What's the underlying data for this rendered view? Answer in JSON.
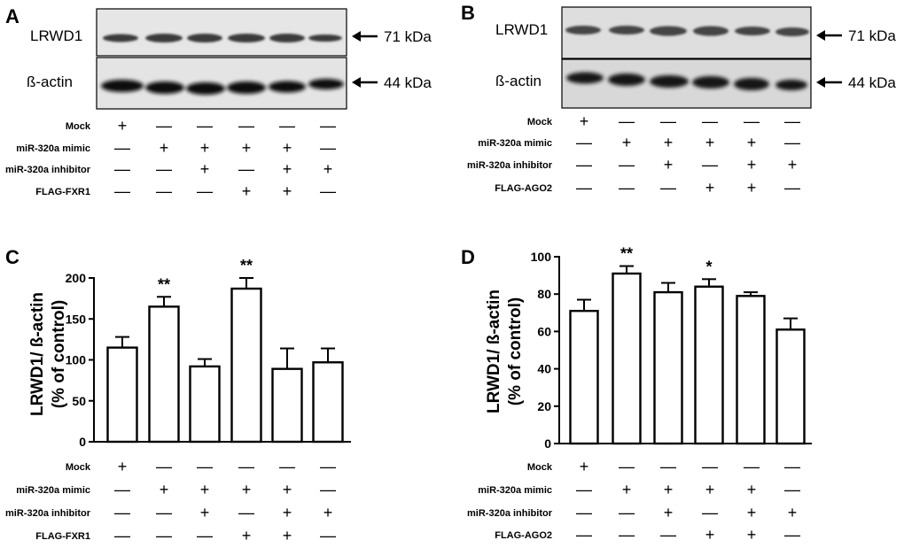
{
  "panels": {
    "a": {
      "label": "A",
      "blots": [
        {
          "name": "LRWD1",
          "size": "71 kDa"
        },
        {
          "name": "ß-actin",
          "size": "44 kDa"
        }
      ],
      "conditions": [
        {
          "label": "Mock",
          "signs": [
            "+",
            "—",
            "—",
            "—",
            "—",
            "—"
          ]
        },
        {
          "label": "miR-320a mimic",
          "signs": [
            "—",
            "+",
            "+",
            "+",
            "+",
            "—"
          ]
        },
        {
          "label": "miR-320a inhibitor",
          "signs": [
            "—",
            "—",
            "+",
            "—",
            "+",
            "+"
          ]
        },
        {
          "label": "FLAG-FXR1",
          "signs": [
            "—",
            "—",
            "—",
            "+",
            "+",
            "—"
          ]
        }
      ]
    },
    "b": {
      "label": "B",
      "blots": [
        {
          "name": "LRWD1",
          "size": "71 kDa"
        },
        {
          "name": "ß-actin",
          "size": "44 kDa"
        }
      ],
      "conditions": [
        {
          "label": "Mock",
          "signs": [
            "+",
            "—",
            "—",
            "—",
            "—",
            "—"
          ]
        },
        {
          "label": "miR-320a mimic",
          "signs": [
            "—",
            "+",
            "+",
            "+",
            "+",
            "—"
          ]
        },
        {
          "label": "miR-320a inhibitor",
          "signs": [
            "—",
            "—",
            "+",
            "—",
            "+",
            "+"
          ]
        },
        {
          "label": "FLAG-AGO2",
          "signs": [
            "—",
            "—",
            "—",
            "+",
            "+",
            "—"
          ]
        }
      ]
    },
    "c": {
      "label": "C",
      "conditions": [
        {
          "label": "Mock",
          "signs": [
            "+",
            "—",
            "—",
            "—",
            "—",
            "—"
          ]
        },
        {
          "label": "miR-320a mimic",
          "signs": [
            "—",
            "+",
            "+",
            "+",
            "+",
            "—"
          ]
        },
        {
          "label": "miR-320a inhibitor",
          "signs": [
            "—",
            "—",
            "+",
            "—",
            "+",
            "+"
          ]
        },
        {
          "label": "FLAG-FXR1",
          "signs": [
            "—",
            "—",
            "—",
            "+",
            "+",
            "—"
          ]
        }
      ]
    },
    "d": {
      "label": "D",
      "conditions": [
        {
          "label": "Mock",
          "signs": [
            "+",
            "—",
            "—",
            "—",
            "—",
            "—"
          ]
        },
        {
          "label": "miR-320a mimic",
          "signs": [
            "—",
            "+",
            "+",
            "+",
            "+",
            "—"
          ]
        },
        {
          "label": "miR-320a inhibitor",
          "signs": [
            "—",
            "—",
            "+",
            "—",
            "+",
            "+"
          ]
        },
        {
          "label": "FLAG-AGO2",
          "signs": [
            "—",
            "—",
            "—",
            "+",
            "+",
            "—"
          ]
        }
      ]
    }
  },
  "chart_data": [
    {
      "type": "bar",
      "panel": "C",
      "ylabel": "LRWD1/ ß-actin (% of control)",
      "ylabel_lines": [
        "LRWD1/ ß-actin",
        "(% of control)"
      ],
      "ylim": [
        0,
        200
      ],
      "yticks": [
        0,
        50,
        100,
        150,
        200
      ],
      "values": [
        115,
        165,
        92,
        187,
        89,
        97
      ],
      "errors": [
        13,
        12,
        9,
        13,
        25,
        17
      ],
      "significance": [
        "",
        "**",
        "",
        "**",
        "",
        ""
      ]
    },
    {
      "type": "bar",
      "panel": "D",
      "ylabel": "LRWD1/ ß-actin (% of control)",
      "ylabel_lines": [
        "LRWD1/ ß-actin",
        "(% of control)"
      ],
      "ylim": [
        0,
        100
      ],
      "yticks": [
        0,
        20,
        40,
        60,
        80,
        100
      ],
      "values": [
        71,
        91,
        81,
        84,
        79,
        61
      ],
      "errors": [
        6,
        4,
        5,
        4,
        2,
        6
      ],
      "significance": [
        "",
        "**",
        "",
        "*",
        "",
        ""
      ]
    }
  ]
}
